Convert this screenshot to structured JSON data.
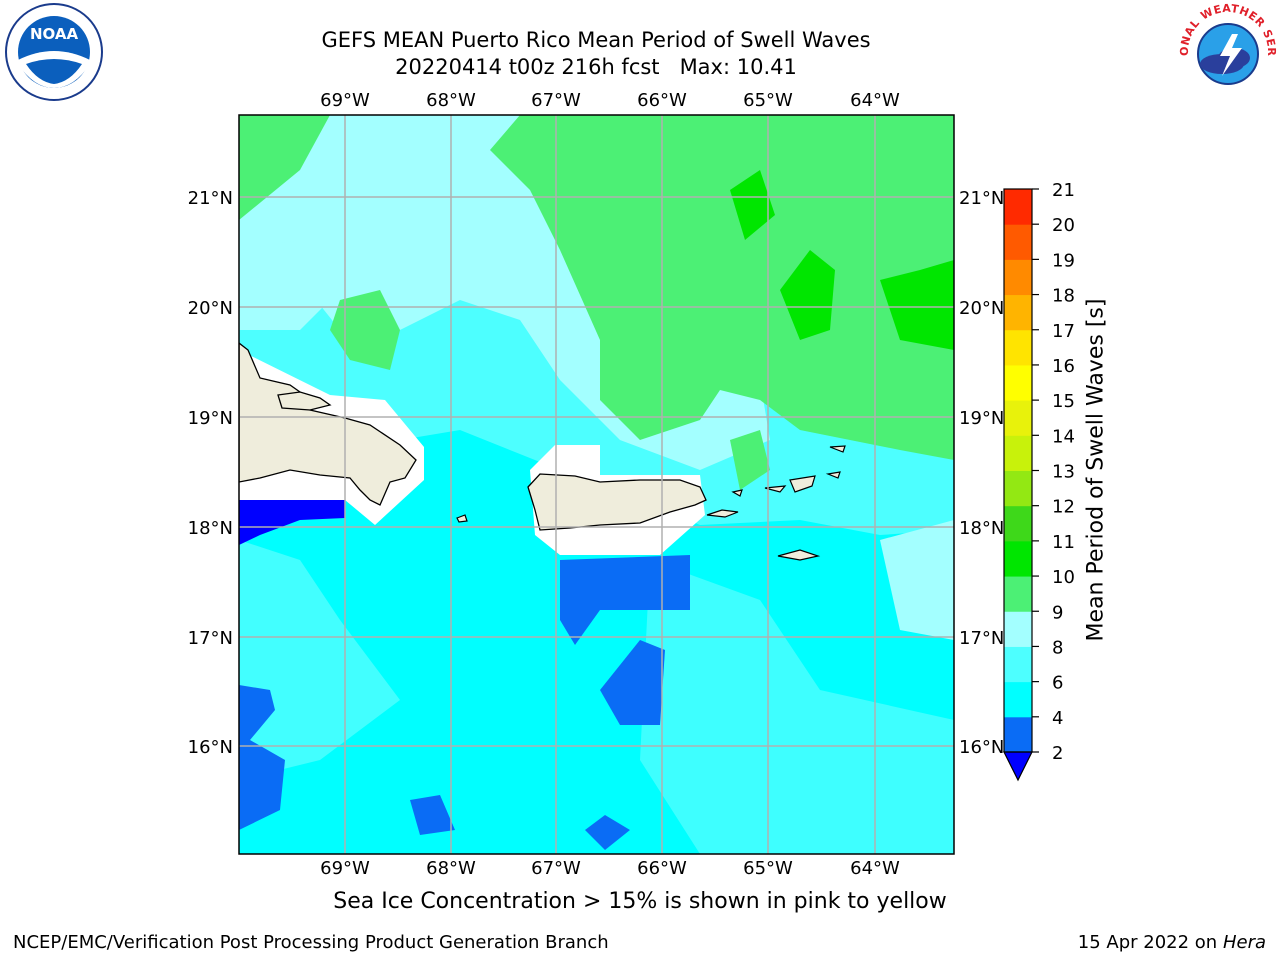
{
  "header": {
    "title_line1": "GEFS MEAN Puerto Rico Mean Period of Swell Waves",
    "title_line2": "20220414 t00z 216h fcst   Max: 10.41"
  },
  "logos": {
    "left": "NOAA",
    "right": "NATIONAL WEATHER SERVICE"
  },
  "map": {
    "lon_labels": [
      "69°W",
      "68°W",
      "67°W",
      "66°W",
      "65°W",
      "64°W"
    ],
    "lat_labels": [
      "21°N",
      "20°N",
      "19°N",
      "18°N",
      "17°N",
      "16°N"
    ],
    "lon_range": [
      -70.0,
      -63.25
    ],
    "lat_range": [
      15.0,
      21.75
    ],
    "land_color": "#efeddc",
    "grid_color": "#b0b0b0"
  },
  "colorbar": {
    "label": "Mean Period of Swell Waves [s]",
    "levels": [
      "2",
      "4",
      "6",
      "8",
      "9",
      "10",
      "11",
      "12",
      "13",
      "14",
      "15",
      "16",
      "17",
      "18",
      "19",
      "20",
      "21"
    ],
    "colors": [
      "#0a6cf5",
      "#00ffff",
      "#4dffff",
      "#a3ffff",
      "#4cf075",
      "#00e600",
      "#3ed81a",
      "#93e813",
      "#c8f20b",
      "#e8f20b",
      "#ffff00",
      "#ffe400",
      "#ffb400",
      "#ff8a00",
      "#ff5a00",
      "#ff2a00"
    ],
    "under_color": "#0000ff"
  },
  "footer": {
    "note": "Sea Ice Concentration > 15% is shown in pink to yellow",
    "left": "NCEP/EMC/Verification Post Processing Product Generation Branch",
    "right_date": "15 Apr 2022 on ",
    "right_machine": "Hera"
  }
}
